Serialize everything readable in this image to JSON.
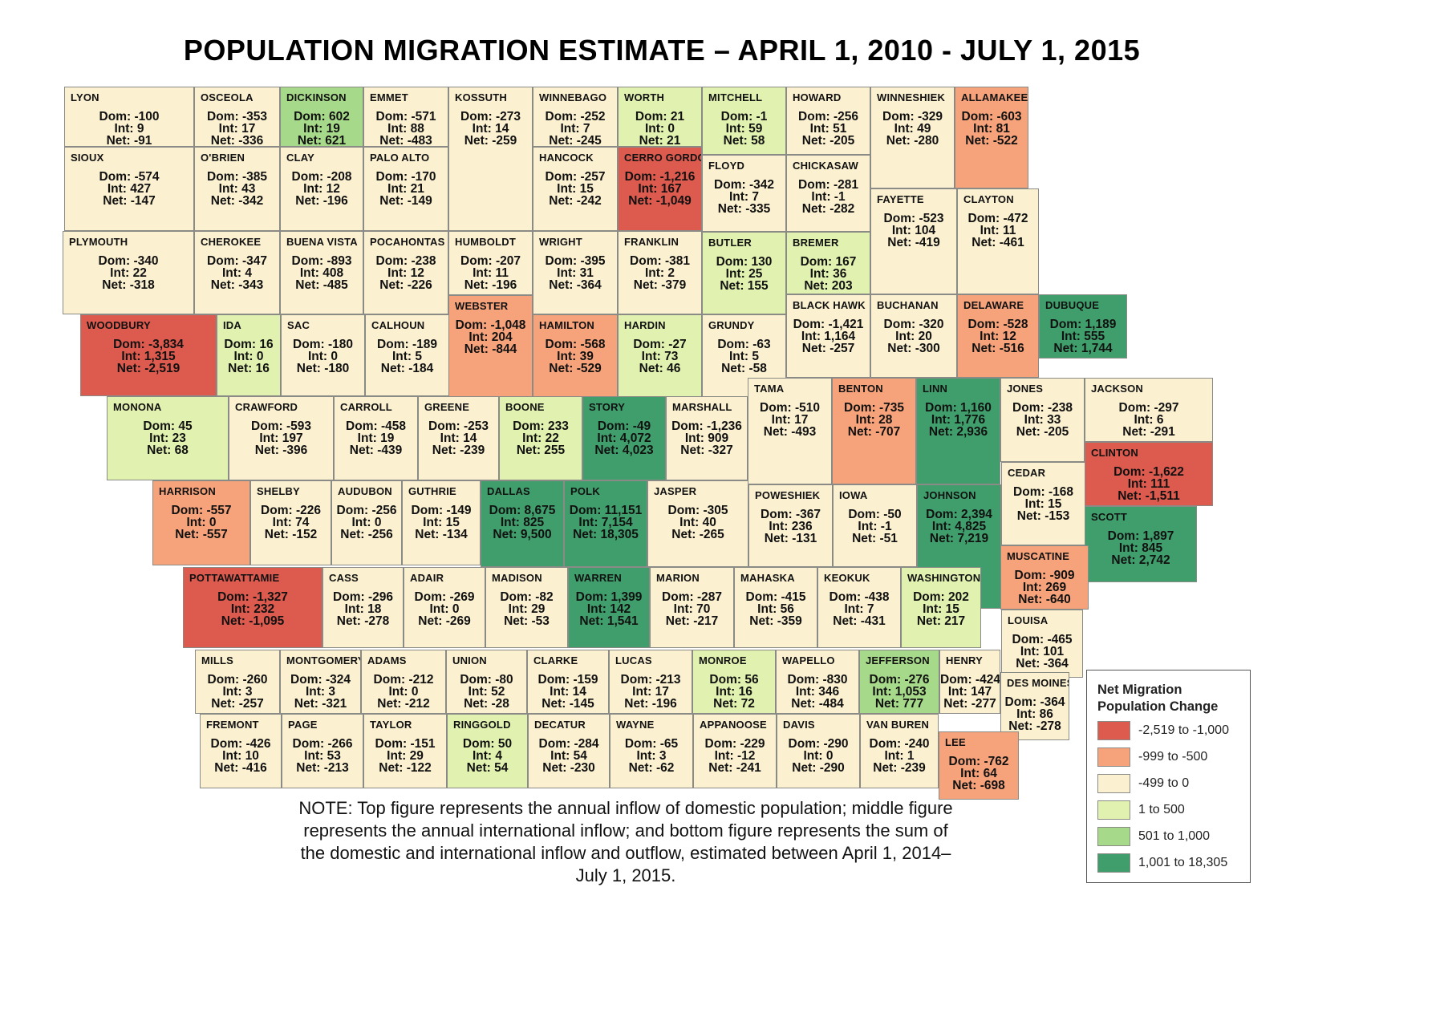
{
  "title": "POPULATION MIGRATION  ESTIMATE – APRIL 1, 2010 - JULY 1, 2015",
  "note": "NOTE:  Top figure represents the annual inflow of domestic population; middle figure represents the annual international inflow; and bottom figure represents the sum of the domestic and international inflow and outflow, estimated between April 1, 2014–July 1, 2015.",
  "legend": {
    "title": "Net Migration Population Change",
    "items": [
      {
        "label": "-2,519 to -1,000",
        "color": "#dc5a4e"
      },
      {
        "label": "-999 to -500",
        "color": "#f6a37b"
      },
      {
        "label": "-499 to 0",
        "color": "#fbf0d0"
      },
      {
        "label": "1 to 500",
        "color": "#e1f2b0"
      },
      {
        "label": "501 to 1,000",
        "color": "#a7d98a"
      },
      {
        "label": "1,001 to 18,305",
        "color": "#3f9e6b"
      }
    ]
  },
  "counties": [
    {
      "name": "LYON",
      "dom": "Dom: -100",
      "int": "Int: 9",
      "net": "Net: -91",
      "class": 2
    },
    {
      "name": "OSCEOLA",
      "dom": "Dom: -353",
      "int": "Int: 17",
      "net": "Net: -336",
      "class": 2
    },
    {
      "name": "DICKINSON",
      "dom": "Dom: 602",
      "int": "Int: 19",
      "net": "Net: 621",
      "class": 4
    },
    {
      "name": "EMMET",
      "dom": "Dom: -571",
      "int": "Int: 88",
      "net": "Net: -483",
      "class": 2
    },
    {
      "name": "KOSSUTH",
      "dom": "Dom: -273",
      "int": "Int: 14",
      "net": "Net: -259",
      "class": 2
    },
    {
      "name": "WINNEBAGO",
      "dom": "Dom: -252",
      "int": "Int: 7",
      "net": "Net: -245",
      "class": 2
    },
    {
      "name": "WORTH",
      "dom": "Dom: 21",
      "int": "Int: 0",
      "net": "Net: 21",
      "class": 3
    },
    {
      "name": "MITCHELL",
      "dom": "Dom: -1",
      "int": "Int: 59",
      "net": "Net: 58",
      "class": 3
    },
    {
      "name": "HOWARD",
      "dom": "Dom: -256",
      "int": "Int: 51",
      "net": "Net: -205",
      "class": 2
    },
    {
      "name": "WINNESHIEK",
      "dom": "Dom: -329",
      "int": "Int: 49",
      "net": "Net: -280",
      "class": 2
    },
    {
      "name": "ALLAMAKEE",
      "dom": "Dom: -603",
      "int": "Int: 81",
      "net": "Net: -522",
      "class": 1
    },
    {
      "name": "SIOUX",
      "dom": "Dom: -574",
      "int": "Int: 427",
      "net": "Net: -147",
      "class": 2
    },
    {
      "name": "O'BRIEN",
      "dom": "Dom: -385",
      "int": "Int: 43",
      "net": "Net: -342",
      "class": 2
    },
    {
      "name": "CLAY",
      "dom": "Dom: -208",
      "int": "Int: 12",
      "net": "Net: -196",
      "class": 2
    },
    {
      "name": "PALO ALTO",
      "dom": "Dom: -170",
      "int": "Int: 21",
      "net": "Net: -149",
      "class": 2
    },
    {
      "name": "HANCOCK",
      "dom": "Dom: -257",
      "int": "Int: 15",
      "net": "Net: -242",
      "class": 2
    },
    {
      "name": "CERRO GORDO",
      "dom": "Dom: -1,216",
      "int": "Int: 167",
      "net": "Net: -1,049",
      "class": 0
    },
    {
      "name": "FLOYD",
      "dom": "Dom: -342",
      "int": "Int: 7",
      "net": "Net: -335",
      "class": 2
    },
    {
      "name": "CHICKASAW",
      "dom": "Dom: -281",
      "int": "Int: -1",
      "net": "Net: -282",
      "class": 2
    },
    {
      "name": "FAYETTE",
      "dom": "Dom: -523",
      "int": "Int: 104",
      "net": "Net: -419",
      "class": 2
    },
    {
      "name": "CLAYTON",
      "dom": "Dom: -472",
      "int": "Int: 11",
      "net": "Net: -461",
      "class": 2
    },
    {
      "name": "PLYMOUTH",
      "dom": "Dom: -340",
      "int": "Int: 22",
      "net": "Net: -318",
      "class": 2
    },
    {
      "name": "CHEROKEE",
      "dom": "Dom: -347",
      "int": "Int: 4",
      "net": "Net: -343",
      "class": 2
    },
    {
      "name": "BUENA VISTA",
      "dom": "Dom: -893",
      "int": "Int: 408",
      "net": "Net: -485",
      "class": 2
    },
    {
      "name": "POCAHONTAS",
      "dom": "Dom: -238",
      "int": "Int: 12",
      "net": "Net: -226",
      "class": 2
    },
    {
      "name": "HUMBOLDT",
      "dom": "Dom: -207",
      "int": "Int: 11",
      "net": "Net: -196",
      "class": 2
    },
    {
      "name": "WRIGHT",
      "dom": "Dom: -395",
      "int": "Int: 31",
      "net": "Net: -364",
      "class": 2
    },
    {
      "name": "FRANKLIN",
      "dom": "Dom: -381",
      "int": "Int: 2",
      "net": "Net: -379",
      "class": 2
    },
    {
      "name": "BUTLER",
      "dom": "Dom: 130",
      "int": "Int: 25",
      "net": "Net: 155",
      "class": 3
    },
    {
      "name": "BREMER",
      "dom": "Dom: 167",
      "int": "Int: 36",
      "net": "Net: 203",
      "class": 3
    },
    {
      "name": "WOODBURY",
      "dom": "Dom: -3,834",
      "int": "Int: 1,315",
      "net": "Net: -2,519",
      "class": 0
    },
    {
      "name": "IDA",
      "dom": "Dom: 16",
      "int": "Int: 0",
      "net": "Net: 16",
      "class": 3
    },
    {
      "name": "SAC",
      "dom": "Dom: -180",
      "int": "Int: 0",
      "net": "Net: -180",
      "class": 2
    },
    {
      "name": "CALHOUN",
      "dom": "Dom: -189",
      "int": "Int: 5",
      "net": "Net: -184",
      "class": 2
    },
    {
      "name": "WEBSTER",
      "dom": "Dom: -1,048",
      "int": "Int: 204",
      "net": "Net: -844",
      "class": 1
    },
    {
      "name": "HAMILTON",
      "dom": "Dom: -568",
      "int": "Int: 39",
      "net": "Net: -529",
      "class": 1
    },
    {
      "name": "HARDIN",
      "dom": "Dom: -27",
      "int": "Int: 73",
      "net": "Net: 46",
      "class": 3
    },
    {
      "name": "GRUNDY",
      "dom": "Dom: -63",
      "int": "Int: 5",
      "net": "Net: -58",
      "class": 2
    },
    {
      "name": "BLACK HAWK",
      "dom": "Dom: -1,421",
      "int": "Int: 1,164",
      "net": "Net: -257",
      "class": 2
    },
    {
      "name": "BUCHANAN",
      "dom": "Dom: -320",
      "int": "Int: 20",
      "net": "Net: -300",
      "class": 2
    },
    {
      "name": "DELAWARE",
      "dom": "Dom: -528",
      "int": "Int: 12",
      "net": "Net: -516",
      "class": 1
    },
    {
      "name": "DUBUQUE",
      "dom": "Dom: 1,189",
      "int": "Int: 555",
      "net": "Net: 1,744",
      "class": 5
    },
    {
      "name": "MONONA",
      "dom": "Dom: 45",
      "int": "Int: 23",
      "net": "Net: 68",
      "class": 3
    },
    {
      "name": "CRAWFORD",
      "dom": "Dom: -593",
      "int": "Int: 197",
      "net": "Net: -396",
      "class": 2
    },
    {
      "name": "CARROLL",
      "dom": "Dom: -458",
      "int": "Int: 19",
      "net": "Net: -439",
      "class": 2
    },
    {
      "name": "GREENE",
      "dom": "Dom: -253",
      "int": "Int: 14",
      "net": "Net: -239",
      "class": 2
    },
    {
      "name": "BOONE",
      "dom": "Dom: 233",
      "int": "Int: 22",
      "net": "Net: 255",
      "class": 3
    },
    {
      "name": "STORY",
      "dom": "Dom: -49",
      "int": "Int: 4,072",
      "net": "Net: 4,023",
      "class": 5
    },
    {
      "name": "MARSHALL",
      "dom": "Dom: -1,236",
      "int": "Int: 909",
      "net": "Net: -327",
      "class": 2
    },
    {
      "name": "TAMA",
      "dom": "Dom: -510",
      "int": "Int: 17",
      "net": "Net: -493",
      "class": 2
    },
    {
      "name": "BENTON",
      "dom": "Dom: -735",
      "int": "Int: 28",
      "net": "Net: -707",
      "class": 1
    },
    {
      "name": "LINN",
      "dom": "Dom: 1,160",
      "int": "Int: 1,776",
      "net": "Net: 2,936",
      "class": 5
    },
    {
      "name": "JONES",
      "dom": "Dom: -238",
      "int": "Int: 33",
      "net": "Net: -205",
      "class": 2
    },
    {
      "name": "JACKSON",
      "dom": "Dom: -297",
      "int": "Int: 6",
      "net": "Net: -291",
      "class": 2
    },
    {
      "name": "HARRISON",
      "dom": "Dom: -557",
      "int": "Int: 0",
      "net": "Net: -557",
      "class": 1
    },
    {
      "name": "SHELBY",
      "dom": "Dom: -226",
      "int": "Int: 74",
      "net": "Net: -152",
      "class": 2
    },
    {
      "name": "AUDUBON",
      "dom": "Dom: -256",
      "int": "Int: 0",
      "net": "Net: -256",
      "class": 2
    },
    {
      "name": "GUTHRIE",
      "dom": "Dom: -149",
      "int": "Int: 15",
      "net": "Net: -134",
      "class": 2
    },
    {
      "name": "DALLAS",
      "dom": "Dom: 8,675",
      "int": "Int: 825",
      "net": "Net: 9,500",
      "class": 5
    },
    {
      "name": "POLK",
      "dom": "Dom: 11,151",
      "int": "Int: 7,154",
      "net": "Net: 18,305",
      "class": 5
    },
    {
      "name": "JASPER",
      "dom": "Dom: -305",
      "int": "Int: 40",
      "net": "Net: -265",
      "class": 2
    },
    {
      "name": "POWESHIEK",
      "dom": "Dom: -367",
      "int": "Int: 236",
      "net": "Net: -131",
      "class": 2
    },
    {
      "name": "IOWA",
      "dom": "Dom: -50",
      "int": "Int: -1",
      "net": "Net: -51",
      "class": 2
    },
    {
      "name": "JOHNSON",
      "dom": "Dom: 2,394",
      "int": "Int: 4,825",
      "net": "Net: 7,219",
      "class": 5
    },
    {
      "name": "CEDAR",
      "dom": "Dom: -168",
      "int": "Int: 15",
      "net": "Net: -153",
      "class": 2
    },
    {
      "name": "CLINTON",
      "dom": "Dom: -1,622",
      "int": "Int: 111",
      "net": "Net: -1,511",
      "class": 0
    },
    {
      "name": "SCOTT",
      "dom": "Dom: 1,897",
      "int": "Int: 845",
      "net": "Net: 2,742",
      "class": 5
    },
    {
      "name": "POTTAWATTAMIE",
      "dom": "Dom: -1,327",
      "int": "Int: 232",
      "net": "Net: -1,095",
      "class": 0
    },
    {
      "name": "CASS",
      "dom": "Dom: -296",
      "int": "Int: 18",
      "net": "Net: -278",
      "class": 2
    },
    {
      "name": "ADAIR",
      "dom": "Dom: -269",
      "int": "Int: 0",
      "net": "Net: -269",
      "class": 2
    },
    {
      "name": "MADISON",
      "dom": "Dom: -82",
      "int": "Int: 29",
      "net": "Net: -53",
      "class": 2
    },
    {
      "name": "WARREN",
      "dom": "Dom: 1,399",
      "int": "Int: 142",
      "net": "Net: 1,541",
      "class": 5
    },
    {
      "name": "MARION",
      "dom": "Dom: -287",
      "int": "Int: 70",
      "net": "Net: -217",
      "class": 2
    },
    {
      "name": "MAHASKA",
      "dom": "Dom: -415",
      "int": "Int: 56",
      "net": "Net: -359",
      "class": 2
    },
    {
      "name": "KEOKUK",
      "dom": "Dom: -438",
      "int": "Int: 7",
      "net": "Net: -431",
      "class": 2
    },
    {
      "name": "WASHINGTON",
      "dom": "Dom: 202",
      "int": "Int: 15",
      "net": "Net: 217",
      "class": 3
    },
    {
      "name": "MUSCATINE",
      "dom": "Dom: -909",
      "int": "Int: 269",
      "net": "Net: -640",
      "class": 1
    },
    {
      "name": "LOUISA",
      "dom": "Dom: -465",
      "int": "Int: 101",
      "net": "Net: -364",
      "class": 2
    },
    {
      "name": "MILLS",
      "dom": "Dom: -260",
      "int": "Int: 3",
      "net": "Net: -257",
      "class": 2
    },
    {
      "name": "MONTGOMERY",
      "dom": "Dom: -324",
      "int": "Int: 3",
      "net": "Net: -321",
      "class": 2
    },
    {
      "name": "ADAMS",
      "dom": "Dom: -212",
      "int": "Int: 0",
      "net": "Net: -212",
      "class": 2
    },
    {
      "name": "UNION",
      "dom": "Dom: -80",
      "int": "Int: 52",
      "net": "Net: -28",
      "class": 2
    },
    {
      "name": "CLARKE",
      "dom": "Dom: -159",
      "int": "Int: 14",
      "net": "Net: -145",
      "class": 2
    },
    {
      "name": "LUCAS",
      "dom": "Dom: -213",
      "int": "Int: 17",
      "net": "Net: -196",
      "class": 2
    },
    {
      "name": "MONROE",
      "dom": "Dom: 56",
      "int": "Int: 16",
      "net": "Net: 72",
      "class": 3
    },
    {
      "name": "WAPELLO",
      "dom": "Dom: -830",
      "int": "Int: 346",
      "net": "Net: -484",
      "class": 2
    },
    {
      "name": "JEFFERSON",
      "dom": "Dom: -276",
      "int": "Int: 1,053",
      "net": "Net: 777",
      "class": 4
    },
    {
      "name": "HENRY",
      "dom": "Dom: -424",
      "int": "Int: 147",
      "net": "Net: -277",
      "class": 2
    },
    {
      "name": "DES MOINES",
      "dom": "Dom: -364",
      "int": "Int: 86",
      "net": "Net: -278",
      "class": 2
    },
    {
      "name": "FREMONT",
      "dom": "Dom: -426",
      "int": "Int: 10",
      "net": "Net: -416",
      "class": 2
    },
    {
      "name": "PAGE",
      "dom": "Dom: -266",
      "int": "Int: 53",
      "net": "Net: -213",
      "class": 2
    },
    {
      "name": "TAYLOR",
      "dom": "Dom: -151",
      "int": "Int: 29",
      "net": "Net: -122",
      "class": 2
    },
    {
      "name": "RINGGOLD",
      "dom": "Dom: 50",
      "int": "Int: 4",
      "net": "Net: 54",
      "class": 3
    },
    {
      "name": "DECATUR",
      "dom": "Dom: -284",
      "int": "Int: 54",
      "net": "Net: -230",
      "class": 2
    },
    {
      "name": "WAYNE",
      "dom": "Dom: -65",
      "int": "Int: 3",
      "net": "Net: -62",
      "class": 2
    },
    {
      "name": "APPANOOSE",
      "dom": "Dom: -229",
      "int": "Int: -12",
      "net": "Net: -241",
      "class": 2
    },
    {
      "name": "DAVIS",
      "dom": "Dom: -290",
      "int": "Int: 0",
      "net": "Net: -290",
      "class": 2
    },
    {
      "name": "VAN BUREN",
      "dom": "Dom: -240",
      "int": "Int: 1",
      "net": "Net: -239",
      "class": 2
    },
    {
      "name": "LEE",
      "dom": "Dom: -762",
      "int": "Int: 64",
      "net": "Net: -698",
      "class": 1
    }
  ]
}
